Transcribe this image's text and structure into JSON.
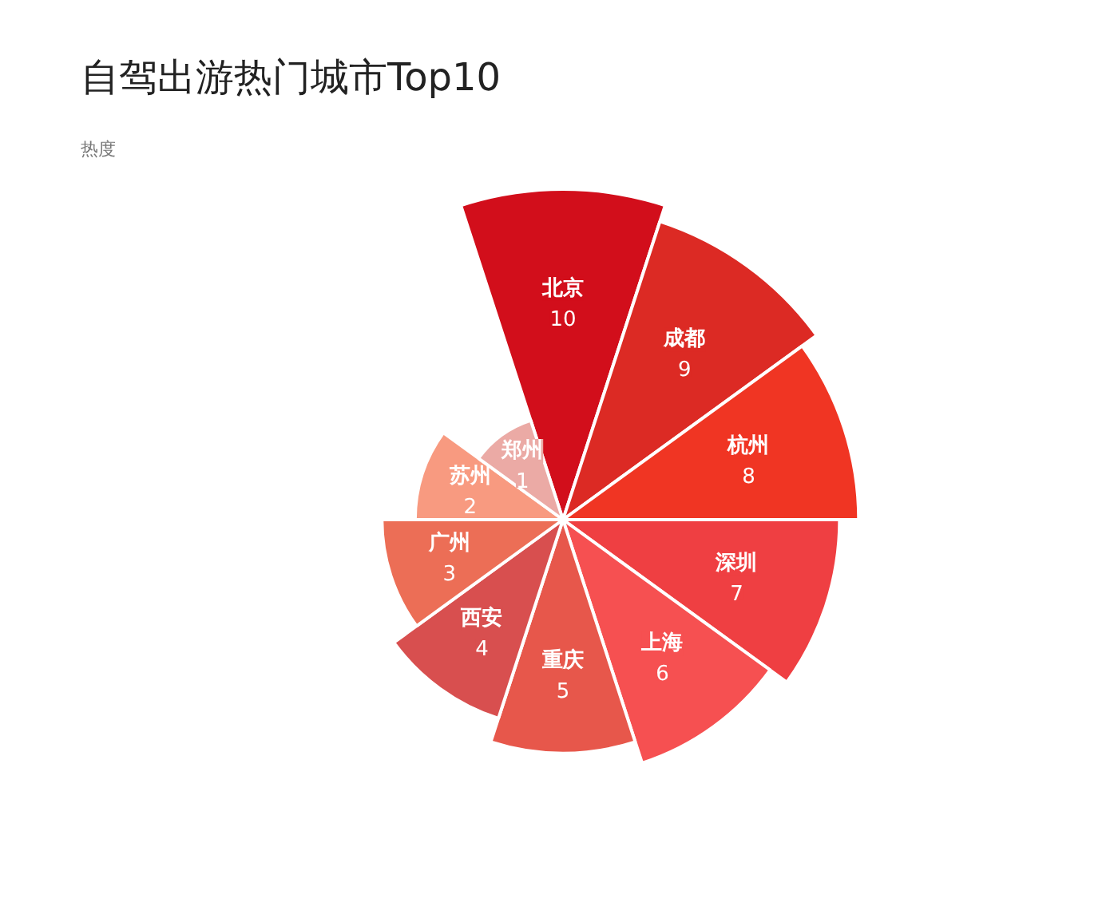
{
  "chart_data": {
    "type": "other",
    "title": "自驾出游热门城市Top10",
    "subtitle": "热度",
    "categories": [
      "北京",
      "成都",
      "杭州",
      "深圳",
      "上海",
      "重庆",
      "西安",
      "广州",
      "苏州",
      "郑州"
    ],
    "values": [
      10,
      9,
      8,
      7,
      6,
      5,
      4,
      3,
      2,
      1
    ],
    "colors": [
      "#d20e1b",
      "#dc2a24",
      "#f03523",
      "#ef3f42",
      "#f65051",
      "#e7574b",
      "#d84f4f",
      "#ec6e56",
      "#f89a80",
      "#ebaaa5"
    ],
    "data_labels": true
  }
}
